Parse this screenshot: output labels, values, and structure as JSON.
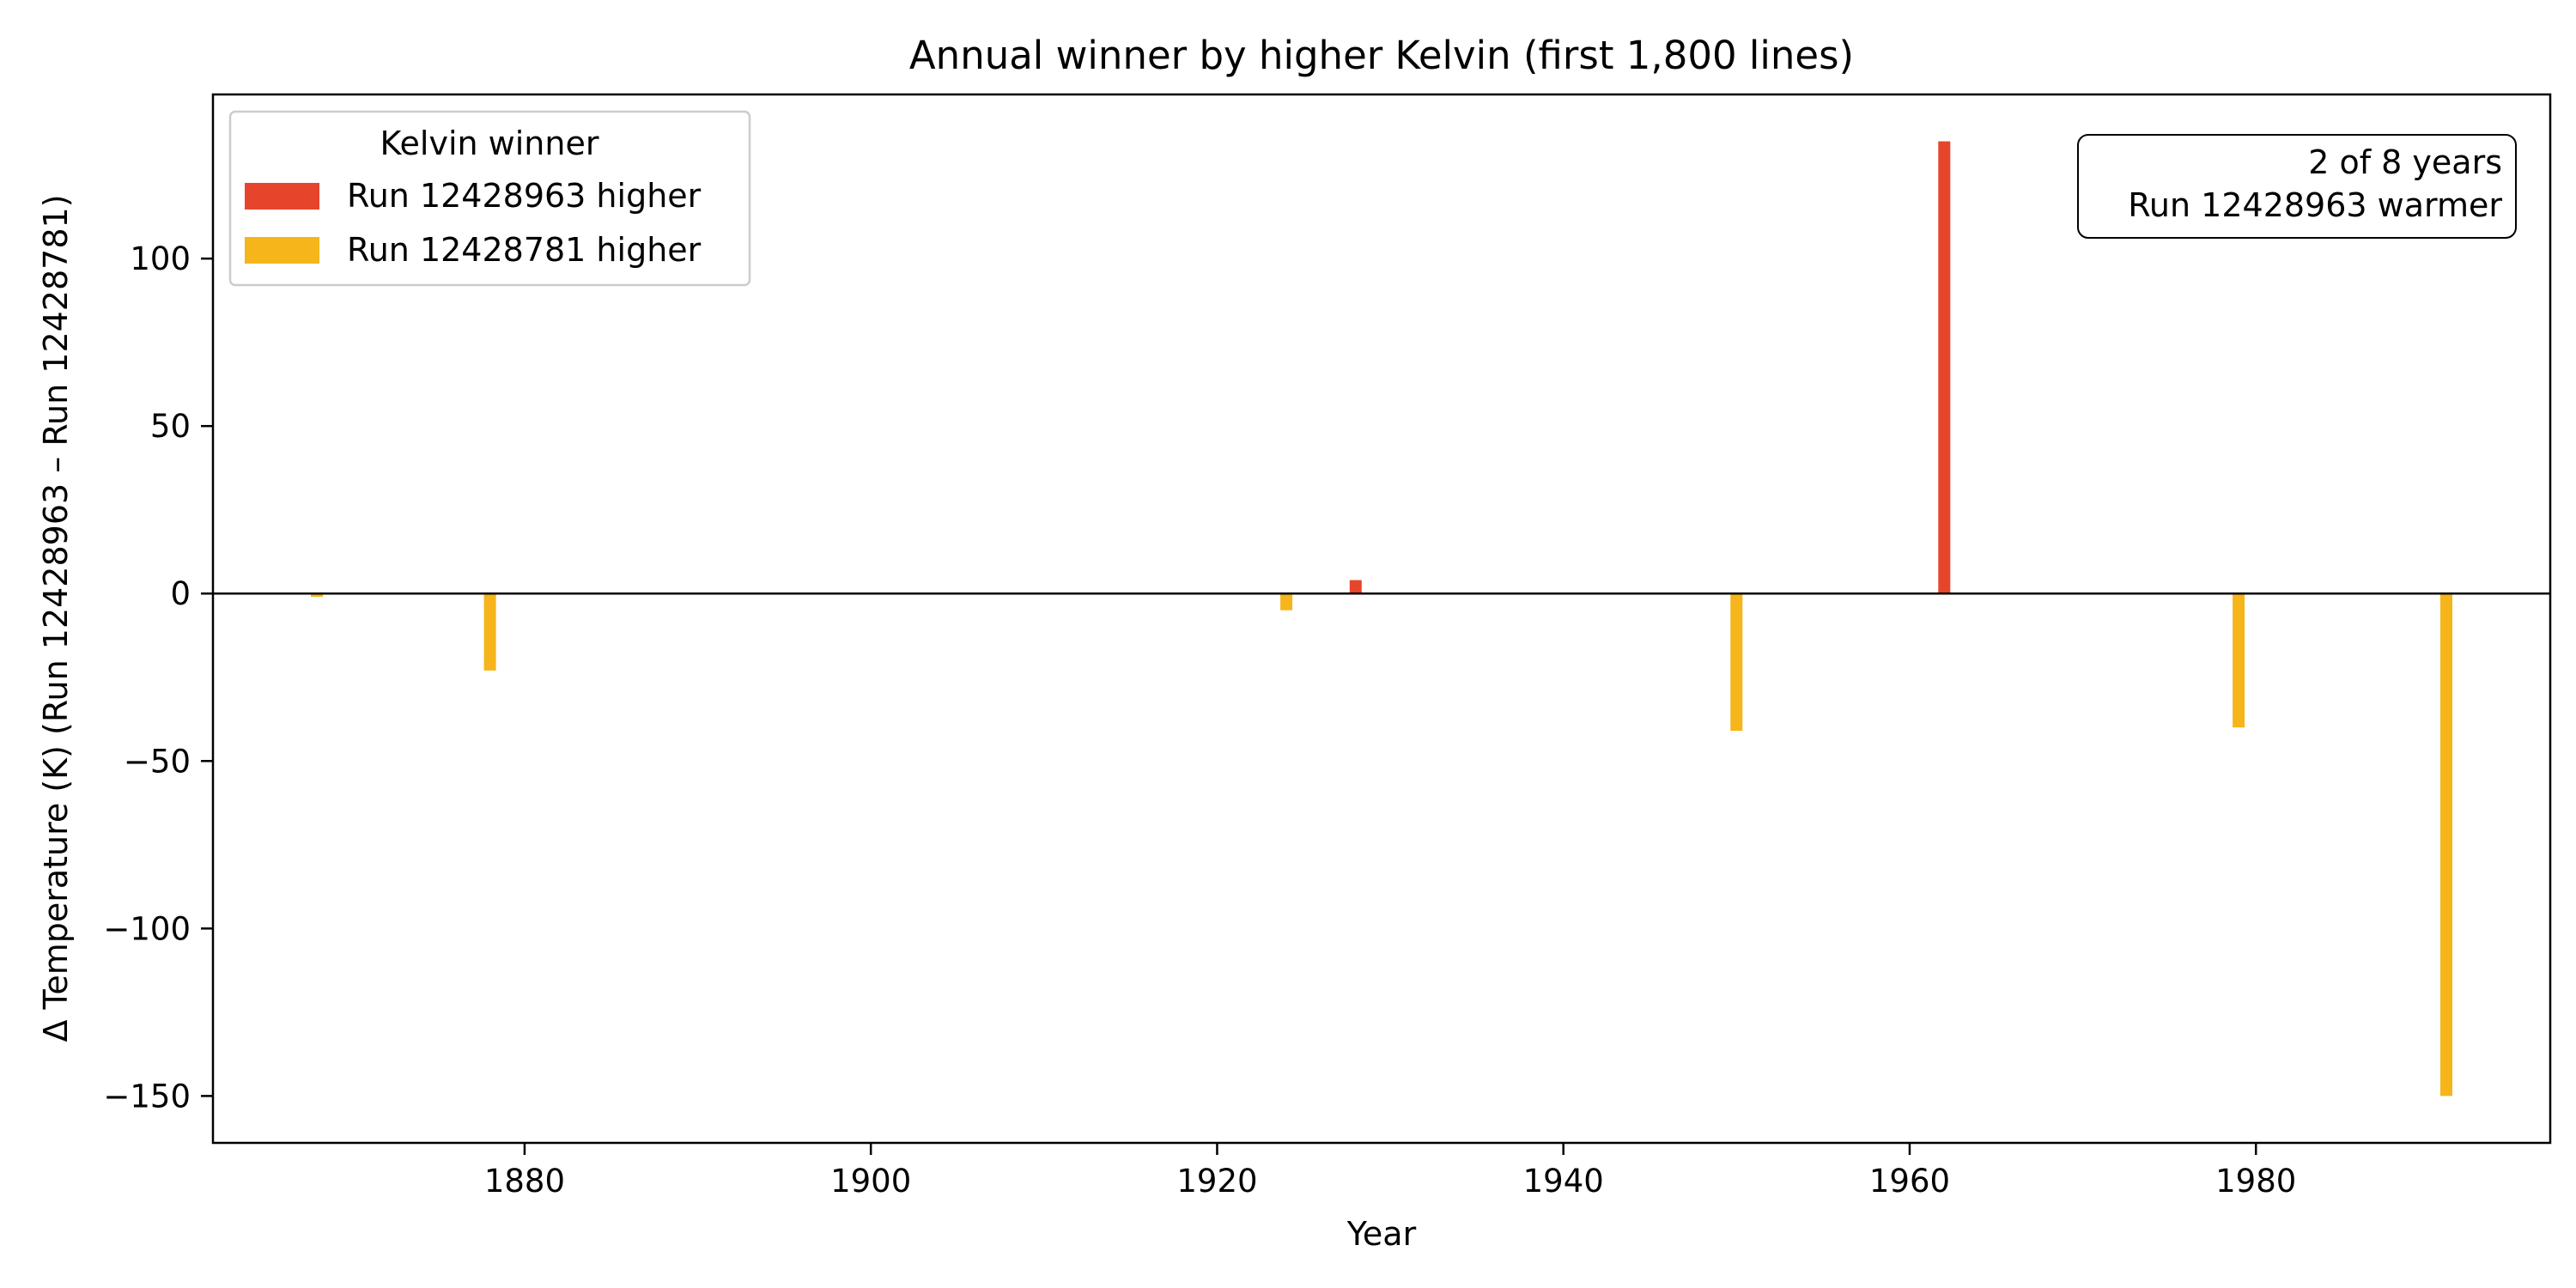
{
  "chart_data": {
    "type": "bar",
    "title": "Annual winner by higher Kelvin (first 1,800 lines)",
    "xlabel": "Year",
    "ylabel": "Δ Temperature (K) (Run 12428963 – Run 12428781)",
    "xlim": [
      1862,
      1997
    ],
    "ylim": [
      -164,
      149
    ],
    "xticks": [
      1880,
      1900,
      1920,
      1940,
      1960,
      1980
    ],
    "yticks": [
      100,
      50,
      0,
      -50,
      -100,
      -150
    ],
    "ytick_labels": [
      "100",
      "50",
      "0",
      "−50",
      "−100",
      "−150"
    ],
    "zero_line": true,
    "grid": false,
    "series": [
      {
        "name": "Run 12428963 higher",
        "color": "#e6452b"
      },
      {
        "name": "Run 12428781 higher",
        "color": "#f5b51b"
      }
    ],
    "bars": [
      {
        "x": 1868,
        "value": -1,
        "series": 1
      },
      {
        "x": 1878,
        "value": -23,
        "series": 1
      },
      {
        "x": 1924,
        "value": -5,
        "series": 1
      },
      {
        "x": 1928,
        "value": 4,
        "series": 0
      },
      {
        "x": 1950,
        "value": -41,
        "series": 1
      },
      {
        "x": 1962,
        "value": 135,
        "series": 0
      },
      {
        "x": 1979,
        "value": -40,
        "series": 1
      },
      {
        "x": 1991,
        "value": -150,
        "series": 1
      }
    ],
    "legend": {
      "title": "Kelvin winner",
      "placement": "top-left",
      "entries": [
        "Run 12428963 higher",
        "Run 12428781 higher"
      ]
    },
    "annotation": {
      "placement": "top-right",
      "line1": "2 of 8 years",
      "line2": "Run 12428963 warmer"
    }
  }
}
